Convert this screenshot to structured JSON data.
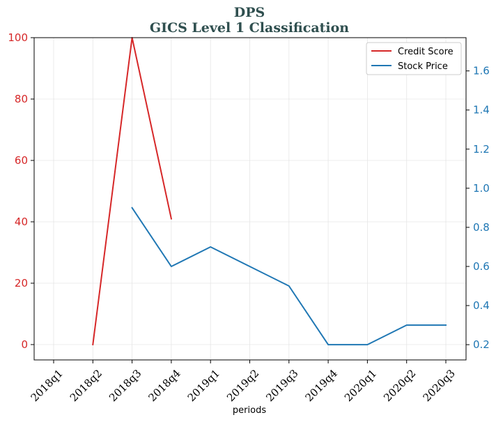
{
  "chart_data": {
    "type": "line",
    "title": "DPS",
    "subtitle": "GICS Level 1 Classification",
    "xlabel": "periods",
    "categories": [
      "2018q1",
      "2018q2",
      "2018q3",
      "2018q4",
      "2019q1",
      "2019q2",
      "2019q3",
      "2019q4",
      "2020q1",
      "2020q2",
      "2020q3"
    ],
    "left_axis": {
      "ylim": [
        -5,
        100
      ],
      "ticks": [
        0,
        20,
        40,
        60,
        80,
        100
      ],
      "tick_labels": [
        "0",
        "20",
        "40",
        "60",
        "80",
        "100"
      ],
      "color": "#d62728"
    },
    "right_axis": {
      "ylim": [
        0.122,
        1.77
      ],
      "ticks": [
        0.2,
        0.4,
        0.6,
        0.8,
        1.0,
        1.2,
        1.4,
        1.6
      ],
      "tick_labels": [
        "0.2",
        "0.4",
        "0.6",
        "0.8",
        "1.0",
        "1.2",
        "1.4",
        "1.6"
      ],
      "color": "#1f77b4"
    },
    "series": [
      {
        "name": "Credit Score",
        "axis": "left",
        "color": "#d62728",
        "values": [
          null,
          0,
          100,
          41,
          null,
          null,
          null,
          null,
          null,
          null,
          null
        ]
      },
      {
        "name": "Stock Price",
        "axis": "right",
        "color": "#1f77b4",
        "values": [
          null,
          null,
          0.9,
          0.6,
          0.7,
          0.6,
          0.5,
          0.2,
          0.2,
          0.3,
          0.3
        ]
      }
    ],
    "grid": true,
    "legend_position": "top-right"
  }
}
